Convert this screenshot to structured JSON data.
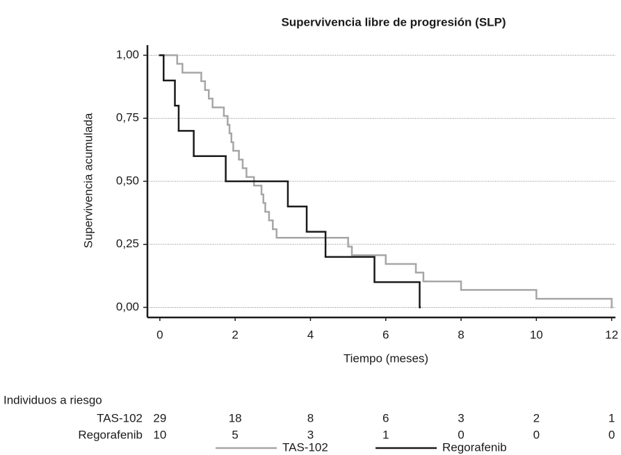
{
  "chart_data": {
    "type": "step",
    "title": "Supervivencia libre de progresión (SLP)",
    "x_label": "Tiempo (meses)",
    "y_label": "Supervivencia acumulada",
    "xlim": [
      -0.33,
      12.1
    ],
    "ylim": [
      -0.04,
      1.04
    ],
    "xticks": [
      0,
      2,
      4,
      6,
      8,
      10,
      12
    ],
    "yticks": [
      {
        "value": 0,
        "label": "0,00"
      },
      {
        "value": 0.25,
        "label": "0,25"
      },
      {
        "value": 0.5,
        "label": "0,50"
      },
      {
        "value": 0.75,
        "label": "0,75"
      },
      {
        "value": 1,
        "label": "1,00"
      }
    ],
    "grid": true,
    "series": [
      {
        "name": "TAS-102",
        "color": "#a6a6a6",
        "x": [
          0,
          0.46,
          0.6,
          1.1,
          1.2,
          1.3,
          1.4,
          1.7,
          1.8,
          1.85,
          1.9,
          1.95,
          2.1,
          2.2,
          2.3,
          2.5,
          2.7,
          2.75,
          2.8,
          2.9,
          3.0,
          3.1,
          5.0,
          5.1,
          6.0,
          6.8,
          7.0,
          8.0,
          10.0,
          12.0
        ],
        "values": [
          1,
          0.966,
          0.931,
          0.897,
          0.862,
          0.828,
          0.793,
          0.759,
          0.724,
          0.69,
          0.655,
          0.621,
          0.586,
          0.552,
          0.517,
          0.483,
          0.448,
          0.414,
          0.379,
          0.345,
          0.31,
          0.276,
          0.241,
          0.207,
          0.172,
          0.138,
          0.103,
          0.069,
          0.034,
          0
        ]
      },
      {
        "name": "Regorafenib",
        "color": "#1a1a1a",
        "x": [
          0,
          0.1,
          0.4,
          0.5,
          0.9,
          1.75,
          3.4,
          3.9,
          4.4,
          5.7,
          6.9
        ],
        "values": [
          1,
          0.9,
          0.8,
          0.7,
          0.6,
          0.5,
          0.4,
          0.3,
          0.2,
          0.1,
          0
        ]
      }
    ],
    "risk_table": {
      "title": "Individuos a riesgo",
      "rows": [
        {
          "name": "TAS-102",
          "values": [
            29,
            18,
            8,
            6,
            3,
            2,
            1
          ]
        },
        {
          "name": "Regorafenib",
          "values": [
            10,
            5,
            3,
            1,
            0,
            0,
            0
          ]
        }
      ]
    }
  }
}
